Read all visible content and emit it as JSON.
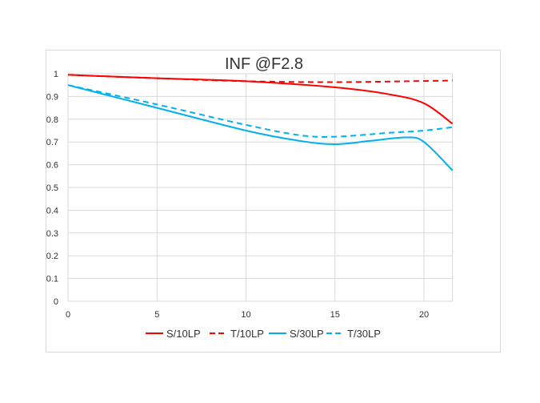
{
  "chart_data": {
    "type": "line",
    "title": "INF @F2.8",
    "xlabel": "",
    "ylabel": "",
    "xlim": [
      0,
      21.6
    ],
    "ylim": [
      0,
      1
    ],
    "x_ticks": [
      "0",
      "5",
      "10",
      "15",
      "20"
    ],
    "y_ticks": [
      "0",
      "0.1",
      "0.2",
      "0.3",
      "0.4",
      "0.5",
      "0.6",
      "0.7",
      "0.8",
      "0.9",
      "1"
    ],
    "grid": true,
    "legend_position": "bottom",
    "series": [
      {
        "name": "S/10LP",
        "color": "#ff0000",
        "dash": false,
        "x": [
          0,
          5,
          10,
          15,
          18,
          20,
          21.6
        ],
        "y": [
          0.995,
          0.98,
          0.967,
          0.94,
          0.91,
          0.87,
          0.78
        ]
      },
      {
        "name": "T/10LP",
        "color": "#ff0000",
        "dash": true,
        "x": [
          0,
          5,
          10,
          15,
          20,
          21.6
        ],
        "y": [
          0.995,
          0.98,
          0.967,
          0.963,
          0.968,
          0.97
        ]
      },
      {
        "name": "S/30LP",
        "color": "#00b0f0",
        "dash": false,
        "x": [
          0,
          5,
          10,
          13,
          15,
          17,
          19,
          20,
          21.6
        ],
        "y": [
          0.95,
          0.85,
          0.75,
          0.705,
          0.69,
          0.705,
          0.72,
          0.7,
          0.575
        ]
      },
      {
        "name": "T/30LP",
        "color": "#00b0f0",
        "dash": true,
        "x": [
          0,
          5,
          10,
          13,
          15,
          18,
          20,
          21.6
        ],
        "y": [
          0.95,
          0.865,
          0.775,
          0.73,
          0.723,
          0.74,
          0.75,
          0.765
        ]
      }
    ]
  }
}
